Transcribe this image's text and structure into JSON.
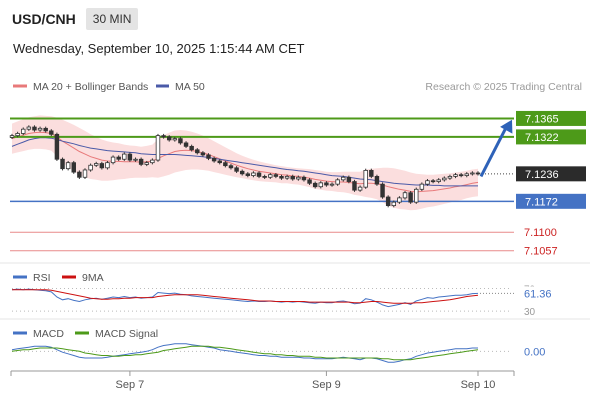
{
  "header": {
    "symbol": "USD/CNH",
    "timeframe": "30 MIN",
    "timestamp": "Wednesday, September 10, 2025 1:15:44 AM CET"
  },
  "colors": {
    "price": "#333333",
    "resistance": "#4d9a19",
    "support": "#4472c4",
    "minor_level": "#e88a8a",
    "bollinger_fill": "#fbdede",
    "ma20": "#e8797a",
    "ma50": "#4a5aa8",
    "arrow": "#2e62b8",
    "rsi": "#4472c4",
    "rsi_ma": "#cc1111",
    "macd": "#4472c4",
    "macd_signal": "#4d9a19",
    "current_price_box": "#2b2b2b"
  },
  "chart_data": [
    {
      "type": "candlestick",
      "panel": "price",
      "legend": [
        "MA 20 + Bollinger Bands",
        "MA 50"
      ],
      "attribution": "Research © 2025 Trading Central",
      "x_ticks": [
        "Sep 7",
        "Sep 9",
        "Sep 10"
      ],
      "ylim": [
        7.104,
        7.138
      ],
      "grid": false,
      "current_price": 7.1236,
      "levels": [
        {
          "value": 7.1365,
          "label": "7.1365",
          "kind": "resistance"
        },
        {
          "value": 7.1322,
          "label": "7.1322",
          "kind": "resistance"
        },
        {
          "value": 7.1236,
          "label": "7.1236",
          "kind": "current"
        },
        {
          "value": 7.1172,
          "label": "7.1172",
          "kind": "support"
        },
        {
          "value": 7.11,
          "label": "7.1100",
          "kind": "minor"
        },
        {
          "value": 7.1057,
          "label": "7.1057",
          "kind": "minor"
        }
      ],
      "forecast_arrow": {
        "from": 7.123,
        "to": 7.1362
      },
      "close": [
        7.1325,
        7.133,
        7.134,
        7.1345,
        7.1338,
        7.1342,
        7.1336,
        7.1328,
        7.127,
        7.1248,
        7.1262,
        7.124,
        7.1228,
        7.1245,
        7.1256,
        7.126,
        7.125,
        7.1262,
        7.1275,
        7.127,
        7.1282,
        7.1268,
        7.127,
        7.1258,
        7.1262,
        7.1268,
        7.1325,
        7.1322,
        7.1315,
        7.1318,
        7.1308,
        7.13,
        7.1292,
        7.1285,
        7.128,
        7.1272,
        7.1266,
        7.1262,
        7.1255,
        7.125,
        7.1242,
        7.1236,
        7.1232,
        7.1238,
        7.123,
        7.1228,
        7.1234,
        7.123,
        7.1226,
        7.123,
        7.1224,
        7.1228,
        7.1222,
        7.1214,
        7.1206,
        7.1215,
        7.121,
        7.1212,
        7.1222,
        7.1228,
        7.1218,
        7.1198,
        7.1205,
        7.1244,
        7.123,
        7.1212,
        7.1182,
        7.1162,
        7.117,
        7.118,
        7.1192,
        7.117,
        7.12,
        7.1212,
        7.122,
        7.1218,
        7.1222,
        7.1226,
        7.123,
        7.1234,
        7.1232,
        7.1236,
        7.1238,
        7.1236
      ],
      "ma20": [
        7.1318,
        7.1322,
        7.1326,
        7.133,
        7.1332,
        7.1333,
        7.1332,
        7.133,
        7.1322,
        7.1312,
        7.1304,
        7.1296,
        7.1288,
        7.1282,
        7.1276,
        7.1272,
        7.1268,
        7.1266,
        7.1265,
        7.1265,
        7.1264,
        7.1264,
        7.1264,
        7.1263,
        7.1264,
        7.1266,
        7.1272,
        7.1278,
        7.1283,
        7.1288,
        7.129,
        7.1291,
        7.129,
        7.1288,
        7.1285,
        7.1281,
        7.1276,
        7.1271,
        7.1266,
        7.1261,
        7.1256,
        7.1252,
        7.1248,
        7.1245,
        7.1242,
        7.124,
        7.1238,
        7.1236,
        7.1234,
        7.1233,
        7.1231,
        7.123,
        7.1228,
        7.1226,
        7.1223,
        7.1221,
        7.1219,
        7.1218,
        7.1217,
        7.1217,
        7.1216,
        7.1214,
        7.1213,
        7.1214,
        7.1214,
        7.1213,
        7.121,
        7.1206,
        7.1203,
        7.12,
        7.1198,
        7.1195,
        7.1194,
        7.1195,
        7.1196,
        7.1197,
        7.1199,
        7.1201,
        7.1203,
        7.1206,
        7.1208,
        7.1211,
        7.1214,
        7.1216
      ],
      "ma50": [
        7.13,
        7.1305,
        7.131,
        7.1315,
        7.1318,
        7.132,
        7.132,
        7.1319,
        7.1316,
        7.1312,
        7.1309,
        7.1306,
        7.1302,
        7.1299,
        7.1296,
        7.1294,
        7.1292,
        7.129,
        7.1289,
        7.1288,
        7.1287,
        7.1286,
        7.1285,
        7.1283,
        7.1282,
        7.1281,
        7.1281,
        7.1281,
        7.1281,
        7.1281,
        7.128,
        7.1279,
        7.1278,
        7.1277,
        7.1276,
        7.1274,
        7.1272,
        7.127,
        7.1268,
        7.1266,
        7.1264,
        7.1262,
        7.126,
        7.1258,
        7.1256,
        7.1254,
        7.1252,
        7.125,
        7.1248,
        7.1246,
        7.1245,
        7.1243,
        7.1242,
        7.124,
        7.1238,
        7.1236,
        7.1234,
        7.1232,
        7.1231,
        7.123,
        7.1228,
        7.1226,
        7.1224,
        7.1223,
        7.1222,
        7.122,
        7.1218,
        7.1216,
        7.1214,
        7.1213,
        7.1212,
        7.1211,
        7.121,
        7.121,
        7.121,
        7.1209,
        7.1209,
        7.1208,
        7.1208,
        7.1208,
        7.1208,
        7.1208,
        7.1208,
        7.1208
      ],
      "bb_width": [
        0.0035,
        0.0036,
        0.0037,
        0.0038,
        0.0038,
        0.0039,
        0.0039,
        0.004,
        0.0045,
        0.005,
        0.0052,
        0.0054,
        0.0055,
        0.0054,
        0.0052,
        0.005,
        0.0048,
        0.0046,
        0.0044,
        0.0042,
        0.004,
        0.0038,
        0.0037,
        0.0036,
        0.0037,
        0.0038,
        0.0045,
        0.0048,
        0.0049,
        0.0049,
        0.0048,
        0.0046,
        0.0044,
        0.0042,
        0.004,
        0.0038,
        0.0036,
        0.0034,
        0.0032,
        0.003,
        0.0028,
        0.0026,
        0.0025,
        0.0024,
        0.0023,
        0.0022,
        0.0021,
        0.002,
        0.002,
        0.0019,
        0.0019,
        0.0019,
        0.002,
        0.0021,
        0.0022,
        0.0022,
        0.0022,
        0.0022,
        0.0023,
        0.0024,
        0.0025,
        0.0027,
        0.0028,
        0.0032,
        0.0034,
        0.0036,
        0.004,
        0.0044,
        0.0046,
        0.0046,
        0.0045,
        0.0044,
        0.0042,
        0.004,
        0.0038,
        0.0037,
        0.0036,
        0.0035,
        0.0034,
        0.0033,
        0.0033,
        0.0032,
        0.0032,
        0.0032
      ]
    },
    {
      "type": "line",
      "panel": "rsi",
      "legend": [
        "RSI",
        "9MA"
      ],
      "ylim": [
        25,
        78
      ],
      "reference_ticks": [
        "70",
        "30"
      ],
      "value_label": "61.36",
      "rsi": [
        68,
        69,
        68,
        69,
        68,
        67,
        66,
        64,
        55,
        50,
        52,
        49,
        47,
        50,
        52,
        53,
        51,
        53,
        55,
        54,
        56,
        54,
        55,
        53,
        54,
        55,
        63,
        62,
        61,
        62,
        60,
        59,
        57,
        56,
        55,
        54,
        53,
        52,
        51,
        50,
        49,
        48,
        47,
        48,
        47,
        47,
        48,
        47,
        46,
        47,
        46,
        47,
        46,
        45,
        44,
        46,
        45,
        45,
        47,
        48,
        46,
        43,
        44,
        52,
        50,
        46,
        41,
        38,
        40,
        42,
        45,
        42,
        48,
        51,
        54,
        53,
        55,
        56,
        57,
        58,
        58,
        59,
        61,
        61.36
      ],
      "rsi_ma": [
        68,
        68,
        68,
        68,
        68,
        68,
        68,
        67,
        65,
        63,
        61,
        59,
        57,
        55,
        53,
        52,
        51,
        51,
        52,
        52,
        53,
        53,
        54,
        54,
        54,
        54,
        56,
        57,
        58,
        59,
        59,
        59,
        59,
        59,
        58,
        57,
        56,
        55,
        54,
        53,
        52,
        51,
        50,
        49,
        48,
        48,
        48,
        47,
        47,
        47,
        47,
        47,
        47,
        46,
        46,
        46,
        46,
        46,
        46,
        46,
        46,
        45,
        45,
        46,
        47,
        47,
        46,
        45,
        44,
        44,
        44,
        44,
        45,
        45,
        46,
        47,
        48,
        49,
        50,
        52,
        54,
        56,
        57,
        58
      ]
    },
    {
      "type": "line",
      "panel": "macd",
      "legend": [
        "MACD",
        "MACD Signal"
      ],
      "ylim": [
        -0.002,
        0.0016
      ],
      "value_label": "0.00",
      "macd": [
        0.0002,
        0.0003,
        0.0004,
        0.0005,
        0.0006,
        0.0006,
        0.0006,
        0.0005,
        0.0002,
        -0.0001,
        -0.0003,
        -0.0005,
        -0.0007,
        -0.0008,
        -0.0008,
        -0.0008,
        -0.0008,
        -0.0007,
        -0.0006,
        -0.0005,
        -0.0004,
        -0.0003,
        -0.0002,
        -0.0001,
        0.0,
        0.0002,
        0.0005,
        0.0007,
        0.0008,
        0.0009,
        0.0009,
        0.0009,
        0.0008,
        0.0007,
        0.0006,
        0.0005,
        0.0004,
        0.0002,
        0.0001,
        0.0,
        -0.0001,
        -0.0002,
        -0.0003,
        -0.0004,
        -0.0005,
        -0.0005,
        -0.0006,
        -0.0006,
        -0.0007,
        -0.0007,
        -0.0007,
        -0.0007,
        -0.0008,
        -0.0008,
        -0.0009,
        -0.0009,
        -0.0009,
        -0.0009,
        -0.0008,
        -0.0007,
        -0.0008,
        -0.0009,
        -0.001,
        -0.0008,
        -0.0008,
        -0.0009,
        -0.0011,
        -0.0013,
        -0.0013,
        -0.0012,
        -0.001,
        -0.0009,
        -0.0006,
        -0.0004,
        -0.0002,
        -0.0001,
        0.0,
        0.0001,
        0.0002,
        0.0003,
        0.0003,
        0.0003,
        0.0004,
        0.0004
      ],
      "signal": [
        0.0,
        0.0001,
        0.0002,
        0.0002,
        0.0003,
        0.0004,
        0.0004,
        0.0004,
        0.0004,
        0.0003,
        0.0002,
        0.0001,
        0.0,
        -0.0002,
        -0.0003,
        -0.0004,
        -0.0005,
        -0.0005,
        -0.0006,
        -0.0006,
        -0.0005,
        -0.0005,
        -0.0004,
        -0.0004,
        -0.0003,
        -0.0002,
        -0.0001,
        0.0001,
        0.0002,
        0.0003,
        0.0004,
        0.0005,
        0.0006,
        0.0006,
        0.0006,
        0.0006,
        0.0005,
        0.0005,
        0.0004,
        0.0003,
        0.0002,
        0.0001,
        0.0,
        -0.0001,
        -0.0002,
        -0.0003,
        -0.0003,
        -0.0004,
        -0.0004,
        -0.0005,
        -0.0005,
        -0.0006,
        -0.0006,
        -0.0006,
        -0.0007,
        -0.0007,
        -0.0008,
        -0.0008,
        -0.0008,
        -0.0008,
        -0.0008,
        -0.0008,
        -0.0008,
        -0.0008,
        -0.0008,
        -0.0008,
        -0.0009,
        -0.0009,
        -0.001,
        -0.001,
        -0.001,
        -0.001,
        -0.0009,
        -0.0008,
        -0.0007,
        -0.0006,
        -0.0005,
        -0.0004,
        -0.0003,
        -0.0002,
        -0.0001,
        0.0,
        0.0001,
        0.0002
      ]
    }
  ]
}
